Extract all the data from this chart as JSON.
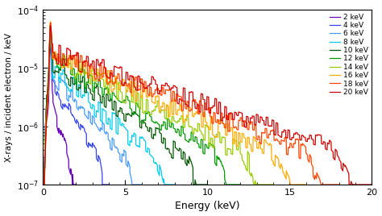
{
  "energies_kev": [
    2,
    4,
    6,
    8,
    10,
    12,
    14,
    16,
    18,
    20
  ],
  "colors": [
    "#6600bb",
    "#3344ee",
    "#4499ff",
    "#00ccee",
    "#005500",
    "#009900",
    "#99cc00",
    "#ffaa00",
    "#ff4400",
    "#cc0000"
  ],
  "xlabel": "Energy (keV)",
  "ylabel": "X-rays / incident electron / keV",
  "xlim": [
    0,
    20
  ],
  "ylim": [
    1e-07,
    0.0001
  ],
  "legend_labels": [
    "2 keV",
    "4 keV",
    "6 keV",
    "8 keV",
    "10 keV",
    "12 keV",
    "14 keV",
    "16 keV",
    "18 keV",
    "20 keV"
  ],
  "background_color": "#ffffff",
  "linewidth": 0.9
}
